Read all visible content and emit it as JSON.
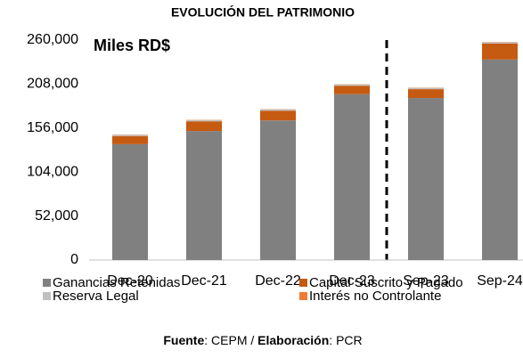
{
  "chart_data": {
    "type": "stacked_bar",
    "title": "EVOLUCIÓN DEL PATRIMONIO",
    "annotation": "Miles RD$",
    "categories": [
      "Dec-20",
      "Dec-21",
      "Dec-22",
      "Dec-23",
      "Sep-23",
      "Sep-24"
    ],
    "series": [
      {
        "name": "Ganancias Retenidas",
        "color": "#808080",
        "values": [
          137000,
          152500,
          165000,
          196000,
          191500,
          237000
        ]
      },
      {
        "name": "Capital Suscrito y Pagado",
        "color": "#c55a11",
        "values": [
          9500,
          11500,
          11500,
          10000,
          10500,
          19000
        ]
      },
      {
        "name": "Reserva Legal",
        "color": "#bfbfbf",
        "values": [
          1500,
          1500,
          1500,
          1500,
          1500,
          1500
        ]
      },
      {
        "name": "Interés no Controlante",
        "color": "#ed7d31",
        "values": [
          300,
          300,
          300,
          300,
          300,
          300
        ]
      }
    ],
    "ylim": [
      0,
      260000
    ],
    "yticks": [
      0,
      {
        "value": 52000,
        "label": "52,000"
      },
      {
        "value": 104000,
        "label": "104,000"
      },
      {
        "value": 156000,
        "label": "156,000"
      },
      {
        "value": 208000,
        "label": "208,000"
      },
      {
        "value": 260000,
        "label": "260,000"
      }
    ],
    "source": {
      "label1": "Fuente",
      "text1": ": CEPM / ",
      "label2": "Elaboración",
      "text2": ": PCR"
    }
  }
}
